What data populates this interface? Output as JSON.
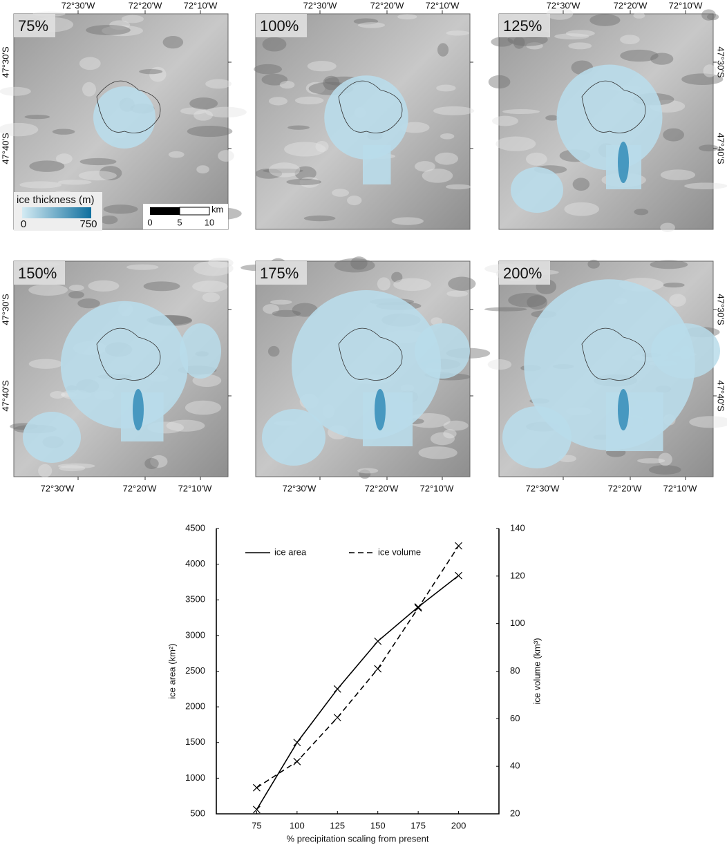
{
  "maps": {
    "panels": [
      "75%",
      "100%",
      "125%",
      "150%",
      "175%",
      "200%"
    ],
    "longitudes": [
      "72°30'W",
      "72°20'W",
      "72°10'W"
    ],
    "latitudes": [
      "47°30'S",
      "47°40'S"
    ],
    "legend": {
      "title": "ice thickness (m)",
      "min": 0,
      "max": 750
    },
    "scale_bar": {
      "unit": "km",
      "ticks": [
        0,
        5,
        10
      ]
    }
  },
  "chart_data": {
    "type": "line",
    "x_label": "% precipitation scaling from present",
    "y_label": "ice area (km²)",
    "y2_label": "ice volume (km³)",
    "x": [
      75,
      100,
      125,
      150,
      175,
      200
    ],
    "series": [
      {
        "name": "ice area",
        "color": "#000000",
        "dash": false,
        "values": [
          560,
          1500,
          2250,
          2920,
          3400,
          3840
        ]
      },
      {
        "name": "ice volume",
        "color": "#000000",
        "dash": true,
        "axis": "y2",
        "values": [
          31,
          42,
          60.5,
          81,
          106.6,
          132.7
        ]
      }
    ],
    "xlim": [
      50,
      225
    ],
    "xticks": [
      75,
      100,
      125,
      150,
      175,
      200
    ],
    "ylim": [
      500,
      4500
    ],
    "yticks": [
      500,
      1000,
      1500,
      2000,
      2500,
      3000,
      3500,
      4000,
      4500
    ],
    "y2lim": [
      20,
      140
    ],
    "y2ticks": [
      20,
      40,
      60,
      80,
      100,
      120,
      140
    ],
    "legend": "top-left"
  }
}
